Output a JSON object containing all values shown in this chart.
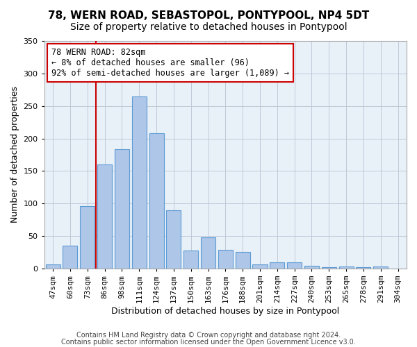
{
  "title": "78, WERN ROAD, SEBASTOPOL, PONTYPOOL, NP4 5DT",
  "subtitle": "Size of property relative to detached houses in Pontypool",
  "xlabel": "Distribution of detached houses by size in Pontypool",
  "ylabel": "Number of detached properties",
  "categories": [
    "47sqm",
    "60sqm",
    "73sqm",
    "86sqm",
    "98sqm",
    "111sqm",
    "124sqm",
    "137sqm",
    "150sqm",
    "163sqm",
    "176sqm",
    "188sqm",
    "201sqm",
    "214sqm",
    "227sqm",
    "240sqm",
    "253sqm",
    "265sqm",
    "278sqm",
    "291sqm",
    "304sqm"
  ],
  "values": [
    6,
    35,
    96,
    160,
    183,
    265,
    208,
    90,
    28,
    48,
    29,
    25,
    6,
    10,
    10,
    4,
    2,
    3,
    2,
    3,
    0
  ],
  "bar_color": "#aec6e8",
  "bar_edge_color": "#5b9bd5",
  "vline_x_idx": 2.5,
  "vline_color": "#cc0000",
  "annotation_text": "78 WERN ROAD: 82sqm\n← 8% of detached houses are smaller (96)\n92% of semi-detached houses are larger (1,089) →",
  "annotation_box_color": "#ffffff",
  "annotation_box_edge": "#cc0000",
  "ylim": [
    0,
    350
  ],
  "yticks": [
    0,
    50,
    100,
    150,
    200,
    250,
    300,
    350
  ],
  "background_color": "#e8f0f8",
  "footer_line1": "Contains HM Land Registry data © Crown copyright and database right 2024.",
  "footer_line2": "Contains public sector information licensed under the Open Government Licence v3.0.",
  "title_fontsize": 11,
  "subtitle_fontsize": 10,
  "xlabel_fontsize": 9,
  "ylabel_fontsize": 9,
  "tick_fontsize": 8,
  "footer_fontsize": 7,
  "annotation_fontsize": 8.5
}
